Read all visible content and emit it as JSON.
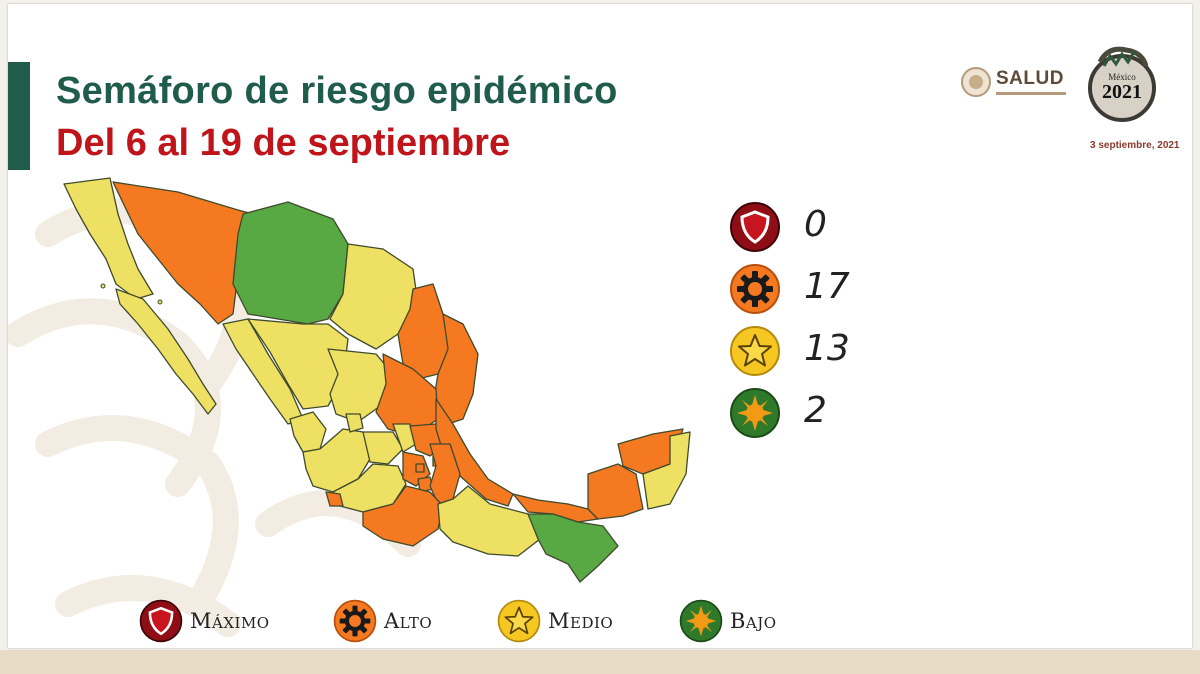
{
  "slide": {
    "title": "Semáforo de riesgo epidémico",
    "subtitle": "Del 6 al 19 de septiembre"
  },
  "header": {
    "salud_logo_text": "SALUD",
    "mx2021_logo_text": "2021",
    "mx2021_logo_small": "México",
    "date": "3 septiembre, 2021"
  },
  "colors": {
    "maximo": "#b3121b",
    "alto": "#f47920",
    "medio": "#eee063",
    "bajo": "#58a844",
    "title": "#1f5c4a",
    "subtitle": "#c0141b"
  },
  "counts": [
    {
      "level": "maximo",
      "icon": "shield-icon",
      "value": "0"
    },
    {
      "level": "alto",
      "icon": "gear-icon",
      "value": "17"
    },
    {
      "level": "medio",
      "icon": "star-icon",
      "value": "13"
    },
    {
      "level": "bajo",
      "icon": "sun-icon",
      "value": "2"
    }
  ],
  "legend": [
    {
      "level": "maximo",
      "icon": "shield-icon",
      "label": "Máximo"
    },
    {
      "level": "alto",
      "icon": "gear-icon",
      "label": "Alto"
    },
    {
      "level": "medio",
      "icon": "star-icon",
      "label": "Medio"
    },
    {
      "level": "bajo",
      "icon": "sun-icon",
      "label": "Bajo"
    }
  ]
}
